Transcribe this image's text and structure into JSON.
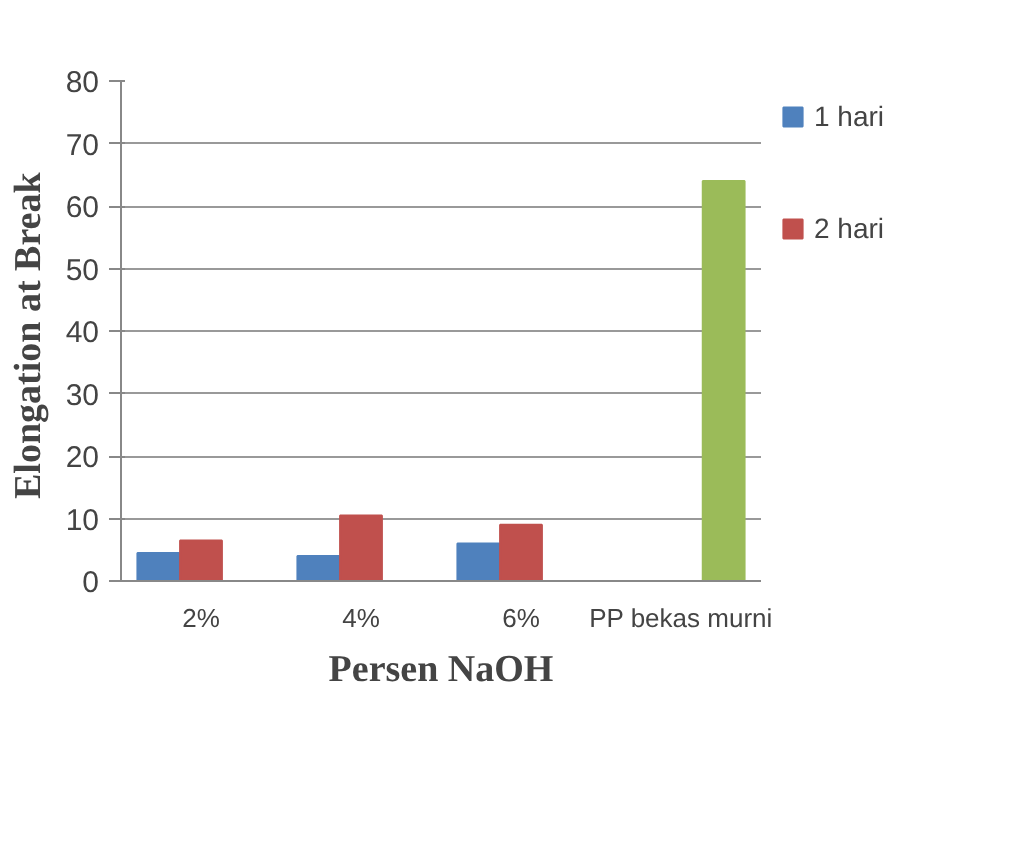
{
  "chart_data": {
    "type": "bar",
    "xlabel": "Persen NaOH",
    "ylabel": "Elongation  at Break",
    "categories": [
      "2%",
      "4%",
      "6%",
      "PP bekas murni"
    ],
    "series": [
      {
        "name": "1 hari",
        "color": "#4f81bd",
        "values": [
          4.5,
          4,
          6,
          null
        ]
      },
      {
        "name": "2 hari",
        "color": "#c0504d",
        "values": [
          6.5,
          10.5,
          9,
          null
        ]
      },
      {
        "color": "#9bbb59",
        "values": [
          null,
          null,
          null,
          64
        ]
      }
    ],
    "ylim": [
      0,
      80
    ],
    "yticks": [
      0,
      10,
      20,
      30,
      40,
      50,
      60,
      70,
      80
    ],
    "grid": "y",
    "legend": "right"
  }
}
